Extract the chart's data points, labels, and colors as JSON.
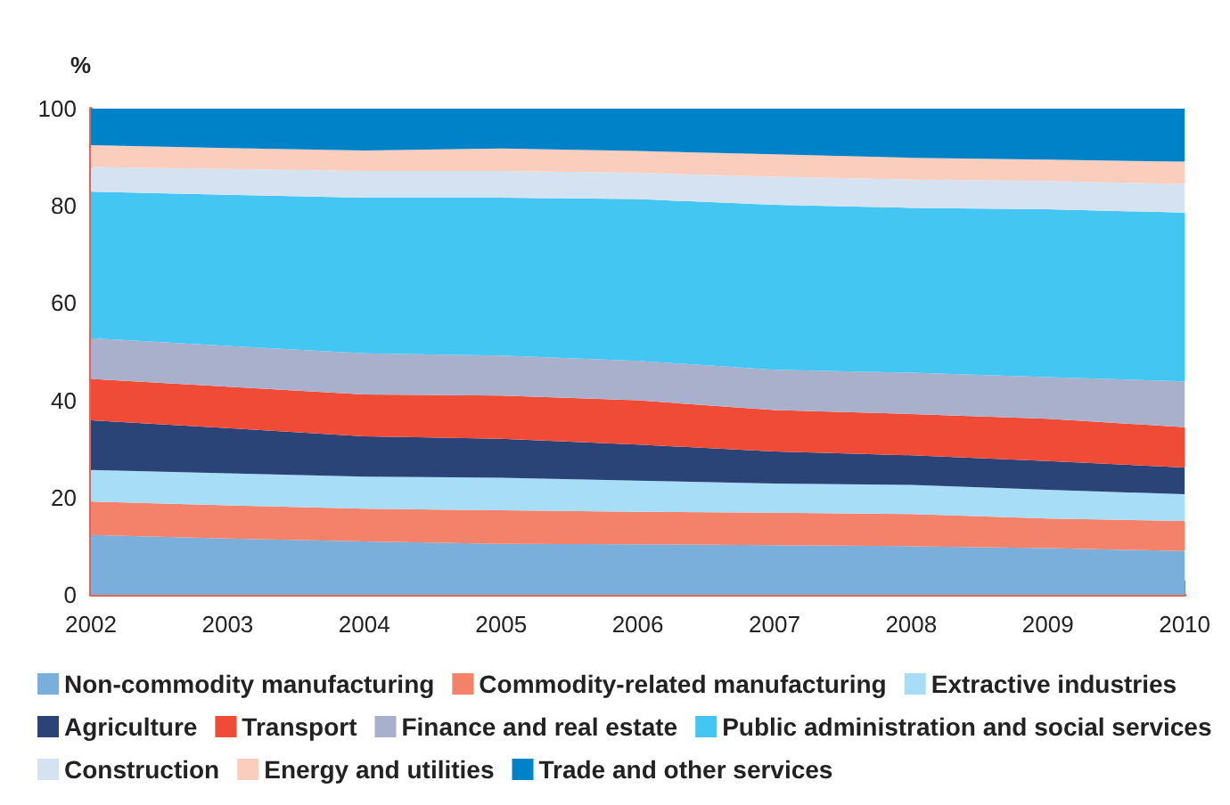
{
  "chart_data": {
    "type": "area",
    "stacked": true,
    "ylabel": "%",
    "categories": [
      "2002",
      "2003",
      "2004",
      "2005",
      "2006",
      "2007",
      "2008",
      "2009",
      "2010"
    ],
    "ylim": [
      0,
      100
    ],
    "yticks": [
      0,
      20,
      40,
      60,
      80,
      100
    ],
    "grid": false,
    "legend": "bottom",
    "series": [
      {
        "name": "Non-commodity manufacturing",
        "color": "#7aafdc",
        "values": [
          12.3,
          11.6,
          11.0,
          10.5,
          10.4,
          10.2,
          10.0,
          9.6,
          9.0
        ]
      },
      {
        "name": "Commodity-related manufacturing",
        "color": "#f4826a",
        "values": [
          6.9,
          6.8,
          6.7,
          6.9,
          6.7,
          6.7,
          6.6,
          6.1,
          6.2
        ]
      },
      {
        "name": "Extractive industries",
        "color": "#a8ddf7",
        "values": [
          6.5,
          6.6,
          6.6,
          6.7,
          6.4,
          6.0,
          6.0,
          5.9,
          5.5
        ]
      },
      {
        "name": "Agriculture",
        "color": "#2b4478",
        "values": [
          10.2,
          9.3,
          8.3,
          8.0,
          7.4,
          6.6,
          6.1,
          5.9,
          5.5
        ]
      },
      {
        "name": "Transport",
        "color": "#f04b36",
        "values": [
          8.5,
          8.5,
          8.6,
          8.9,
          9.1,
          8.5,
          8.5,
          8.7,
          8.3
        ]
      },
      {
        "name": "Finance and real estate",
        "color": "#a8b0cb",
        "values": [
          8.4,
          8.4,
          8.5,
          8.2,
          8.1,
          8.3,
          8.5,
          8.6,
          9.4
        ]
      },
      {
        "name": "Public administration and social services",
        "color": "#44c6f3",
        "values": [
          30.1,
          31.1,
          32.0,
          32.5,
          33.3,
          33.9,
          33.9,
          34.5,
          34.7
        ]
      },
      {
        "name": "Construction",
        "color": "#d5e2f2",
        "values": [
          5.1,
          5.3,
          5.5,
          5.5,
          5.4,
          5.8,
          5.8,
          5.8,
          5.9
        ]
      },
      {
        "name": "Energy and utilities",
        "color": "#fbcdbc",
        "values": [
          4.5,
          4.3,
          4.2,
          4.6,
          4.5,
          4.6,
          4.5,
          4.4,
          4.6
        ]
      },
      {
        "name": "Trade and other services",
        "color": "#0082c8",
        "values": [
          7.5,
          8.1,
          8.6,
          8.2,
          8.7,
          9.4,
          10.1,
          10.5,
          10.9
        ]
      }
    ]
  }
}
